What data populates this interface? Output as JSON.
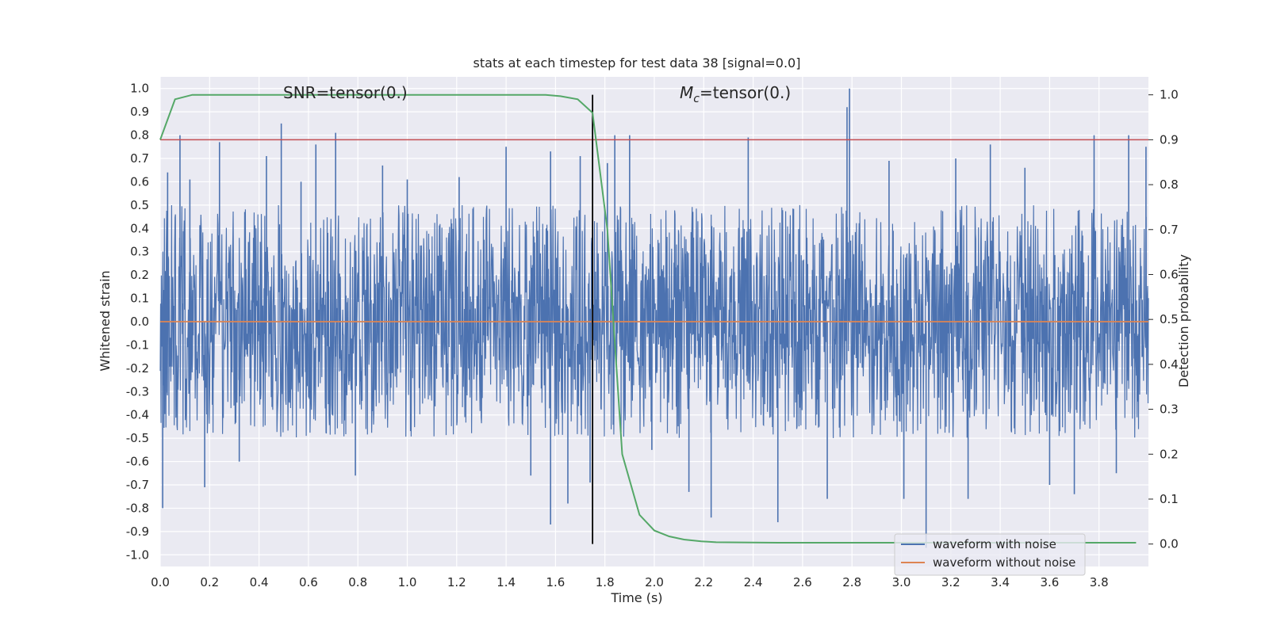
{
  "chart_data": {
    "type": "line",
    "title": "stats at each timestep for test data 38 [signal=0.0]",
    "xlabel": "Time (s)",
    "ylabel_left": "Whitened strain",
    "ylabel_right": "Detection probability",
    "xlim": [
      0.0,
      4.0
    ],
    "ylim_left": [
      -1.05,
      1.05
    ],
    "ylim_right": [
      -0.05,
      1.04
    ],
    "x_ticks": [
      "0.0",
      "0.2",
      "0.4",
      "0.6",
      "0.8",
      "1.0",
      "1.2",
      "1.4",
      "1.6",
      "1.8",
      "2.0",
      "2.2",
      "2.4",
      "2.6",
      "2.8",
      "3.0",
      "3.2",
      "3.4",
      "3.6",
      "3.8"
    ],
    "x_tick_values": [
      0.0,
      0.2,
      0.4,
      0.6,
      0.8,
      1.0,
      1.2,
      1.4,
      1.6,
      1.8,
      2.0,
      2.2,
      2.4,
      2.6,
      2.8,
      3.0,
      3.2,
      3.4,
      3.6,
      3.8
    ],
    "y_left_ticks": [
      "1.0",
      "0.9",
      "0.8",
      "0.7",
      "0.6",
      "0.5",
      "0.4",
      "0.3",
      "0.2",
      "0.1",
      "0.0",
      "-0.1",
      "-0.2",
      "-0.3",
      "-0.4",
      "-0.5",
      "-0.6",
      "-0.7",
      "-0.8",
      "-0.9",
      "-1.0"
    ],
    "y_left_tick_values": [
      1.0,
      0.9,
      0.8,
      0.7,
      0.6,
      0.5,
      0.4,
      0.3,
      0.2,
      0.1,
      0.0,
      -0.1,
      -0.2,
      -0.3,
      -0.4,
      -0.5,
      -0.6,
      -0.7,
      -0.8,
      -0.9,
      -1.0
    ],
    "y_right_ticks": [
      "1.0",
      "0.9",
      "0.8",
      "0.7",
      "0.6",
      "0.5",
      "0.4",
      "0.3",
      "0.2",
      "0.1",
      "0.0"
    ],
    "y_right_tick_values": [
      1.0,
      0.9,
      0.8,
      0.7,
      0.6,
      0.5,
      0.4,
      0.3,
      0.2,
      0.1,
      0.0
    ],
    "annotations": {
      "snr": "SNR=tensor(0.)",
      "mc_symbol": "M",
      "mc_subscript": "c",
      "mc_rest": "=tensor(0.)"
    },
    "threshold_right": 0.9,
    "vline_x": 1.75,
    "series": [
      {
        "name": "waveform with noise",
        "color": "#4c72b0",
        "spikes": [
          {
            "x": 0.01,
            "y": -0.8
          },
          {
            "x": 0.03,
            "y": 0.64
          },
          {
            "x": 0.08,
            "y": 0.8
          },
          {
            "x": 0.12,
            "y": 0.61
          },
          {
            "x": 0.18,
            "y": -0.71
          },
          {
            "x": 0.24,
            "y": 0.77
          },
          {
            "x": 0.32,
            "y": -0.6
          },
          {
            "x": 0.43,
            "y": 0.71
          },
          {
            "x": 0.49,
            "y": 0.85
          },
          {
            "x": 0.57,
            "y": 0.6
          },
          {
            "x": 0.63,
            "y": 0.76
          },
          {
            "x": 0.71,
            "y": 0.81
          },
          {
            "x": 0.79,
            "y": -0.66
          },
          {
            "x": 0.9,
            "y": 0.67
          },
          {
            "x": 1.0,
            "y": 0.61
          },
          {
            "x": 1.21,
            "y": 0.62
          },
          {
            "x": 1.4,
            "y": 0.75
          },
          {
            "x": 1.5,
            "y": -0.66
          },
          {
            "x": 1.58,
            "y": 0.73
          },
          {
            "x": 1.58,
            "y": -0.87
          },
          {
            "x": 1.65,
            "y": -0.78
          },
          {
            "x": 1.7,
            "y": 0.71
          },
          {
            "x": 1.74,
            "y": -0.69
          },
          {
            "x": 1.81,
            "y": 0.68
          },
          {
            "x": 1.84,
            "y": 0.8
          },
          {
            "x": 1.9,
            "y": 0.8
          },
          {
            "x": 1.99,
            "y": -0.55
          },
          {
            "x": 2.14,
            "y": -0.73
          },
          {
            "x": 2.23,
            "y": -0.84
          },
          {
            "x": 2.38,
            "y": 0.79
          },
          {
            "x": 2.5,
            "y": -0.86
          },
          {
            "x": 2.7,
            "y": -0.76
          },
          {
            "x": 2.79,
            "y": 1.0
          },
          {
            "x": 2.78,
            "y": 0.92
          },
          {
            "x": 2.95,
            "y": 0.69
          },
          {
            "x": 3.01,
            "y": -0.76
          },
          {
            "x": 3.1,
            "y": -0.97
          },
          {
            "x": 3.22,
            "y": 0.7
          },
          {
            "x": 3.27,
            "y": -0.76
          },
          {
            "x": 3.36,
            "y": 0.76
          },
          {
            "x": 3.5,
            "y": 0.66
          },
          {
            "x": 3.6,
            "y": -0.7
          },
          {
            "x": 3.7,
            "y": -0.74
          },
          {
            "x": 3.78,
            "y": 0.8
          },
          {
            "x": 3.87,
            "y": -0.65
          },
          {
            "x": 3.92,
            "y": 0.8
          },
          {
            "x": 3.99,
            "y": 0.75
          }
        ]
      },
      {
        "name": "waveform without noise",
        "color": "#dd8452",
        "x": [
          0.0,
          4.0
        ],
        "values": [
          0.0,
          0.0
        ]
      },
      {
        "name": "",
        "axis": "right",
        "color": "#55a868",
        "x": [
          0.0,
          0.06,
          0.13,
          0.19,
          0.25,
          0.38,
          0.5,
          0.75,
          1.0,
          1.25,
          1.5,
          1.56,
          1.62,
          1.69,
          1.75,
          1.81,
          1.87,
          1.94,
          2.0,
          2.06,
          2.12,
          2.19,
          2.25,
          2.5,
          3.0,
          3.5,
          3.95
        ],
        "values": [
          0.9,
          0.99,
          1.0,
          1.0,
          1.0,
          1.0,
          1.0,
          1.0,
          1.0,
          1.0,
          1.0,
          1.0,
          0.997,
          0.99,
          0.96,
          0.7,
          0.2,
          0.065,
          0.03,
          0.017,
          0.01,
          0.006,
          0.004,
          0.003,
          0.003,
          0.003,
          0.003
        ]
      }
    ],
    "legend": {
      "position": "lower-right",
      "entries": [
        "waveform with noise",
        "waveform without noise"
      ]
    },
    "grid": true,
    "colors": {
      "background": "#eaeaf2",
      "grid": "#ffffff",
      "threshold": "#c44e52",
      "vline": "#000000"
    }
  }
}
